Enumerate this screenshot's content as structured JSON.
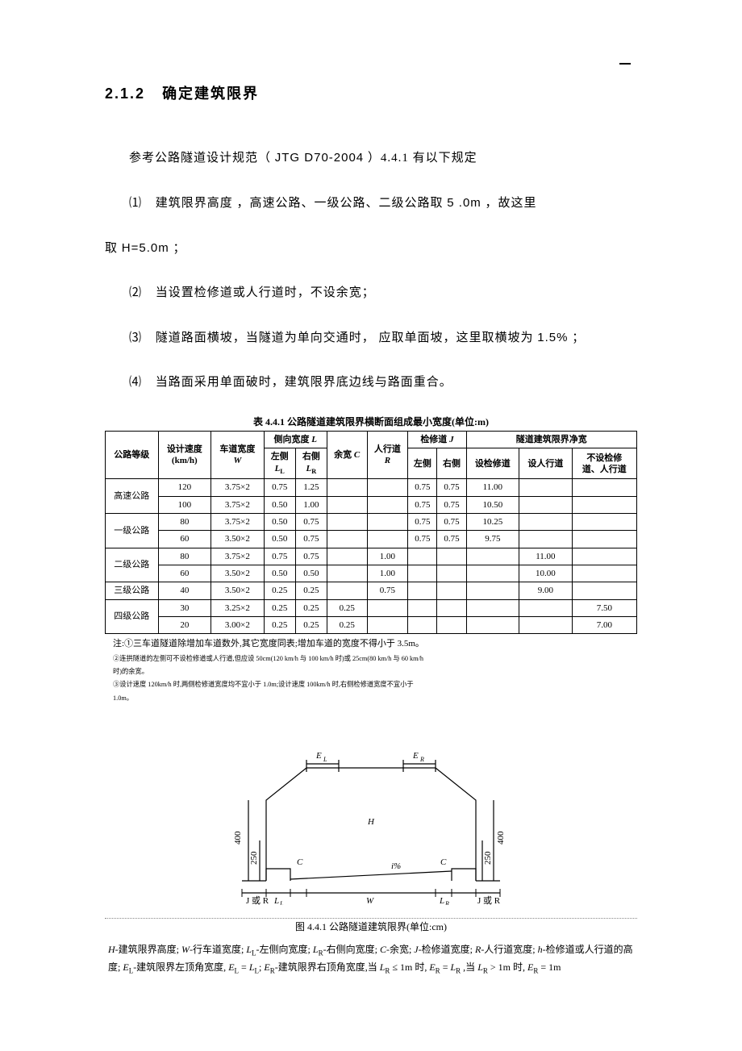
{
  "heading": {
    "number": "2.1.2",
    "title": "确定建筑限界"
  },
  "intro": {
    "prefix": "参考公路隧道设计规范（ ",
    "code": "JTG D70-2004",
    "suffix": " ）4.4.1 有以下规定"
  },
  "items": [
    {
      "marker": "⑴",
      "pre": "建筑限界高度 ，高速公路、一级公路、二级公路取 ",
      "val": "5 .0m",
      "post": " ，故这里"
    },
    {
      "cont": "取 H=5.0m ；"
    },
    {
      "marker": "⑵",
      "text": "当设置检修道或人行道时，不设余宽；"
    },
    {
      "marker": "⑶",
      "pre": "隧道路面横坡，当隧道为单向交通时， 应取单面坡，这里取横坡为 ",
      "val": "1.5%",
      "post": " ；"
    },
    {
      "marker": "⑷",
      "text": "当路面采用单面破时，建筑限界底边线与路面重合。"
    }
  ],
  "table": {
    "title": "表 4.4.1  公路隧道建筑限界横断面组成最小宽度(单位:m)",
    "headers": {
      "grade": "公路等级",
      "speed": "设计速度 (km/h)",
      "laneW": "车道宽度 W",
      "side": "侧向宽度 L",
      "sideL": "左侧 L_L",
      "sideR": "右侧 L_R",
      "clearC": "余宽 C",
      "pedR": "人行道 R",
      "maint": "检修道 J",
      "maintL": "左侧",
      "maintR": "右侧",
      "netW": "隧道建筑限界净宽",
      "net1": "设检修道设人行道",
      "net2": "不设检修道、人行道"
    },
    "rows": [
      {
        "grade": "高速公路",
        "speed": "120",
        "W": "3.75×2",
        "LL": "0.75",
        "LR": "1.25",
        "C": "",
        "R": "",
        "JL": "0.75",
        "JR": "0.75",
        "N1": "11.00",
        "N2": "",
        "N3": ""
      },
      {
        "grade": "",
        "speed": "100",
        "W": "3.75×2",
        "LL": "0.50",
        "LR": "1.00",
        "C": "",
        "R": "",
        "JL": "0.75",
        "JR": "0.75",
        "N1": "10.50",
        "N2": "",
        "N3": ""
      },
      {
        "grade": "一级公路",
        "speed": "80",
        "W": "3.75×2",
        "LL": "0.50",
        "LR": "0.75",
        "C": "",
        "R": "",
        "JL": "0.75",
        "JR": "0.75",
        "N1": "10.25",
        "N2": "",
        "N3": ""
      },
      {
        "grade": "",
        "speed": "60",
        "W": "3.50×2",
        "LL": "0.50",
        "LR": "0.75",
        "C": "",
        "R": "",
        "JL": "0.75",
        "JR": "0.75",
        "N1": "9.75",
        "N2": "",
        "N3": ""
      },
      {
        "grade": "",
        "speed": "80",
        "W": "3.75×2",
        "LL": "0.75",
        "LR": "0.75",
        "C": "",
        "R": "1.00",
        "JL": "",
        "JR": "",
        "N1": "",
        "N2": "11.00",
        "N3": ""
      },
      {
        "grade": "二级公路",
        "speed": "60",
        "W": "3.50×2",
        "LL": "0.50",
        "LR": "0.50",
        "C": "",
        "R": "1.00",
        "JL": "",
        "JR": "",
        "N1": "",
        "N2": "10.00",
        "N3": ""
      },
      {
        "grade": "三级公路",
        "speed": "40",
        "W": "3.50×2",
        "LL": "0.25",
        "LR": "0.25",
        "C": "",
        "R": "0.75",
        "JL": "",
        "JR": "",
        "N1": "",
        "N2": "9.00",
        "N3": ""
      },
      {
        "grade": "四级公路",
        "speed": "30",
        "W": "3.25×2",
        "LL": "0.25",
        "LR": "0.25",
        "C": "0.25",
        "R": "",
        "JL": "",
        "JR": "",
        "N1": "",
        "N2": "",
        "N3": "7.50"
      },
      {
        "grade": "",
        "speed": "20",
        "W": "3.00×2",
        "LL": "0.25",
        "LR": "0.25",
        "C": "0.25",
        "R": "",
        "JL": "",
        "JR": "",
        "N1": "",
        "N2": "",
        "N3": "7.00"
      }
    ],
    "notes": [
      "注:①三车道隧道除增加车道数外,其它宽度同表;增加车道的宽度不得小于 3.5m。",
      "②连拱隧道的左侧可不设检修道或人行道,但应设 50cm(120 km/h 与 100 km/h 时)或 25cm(80 km/h 与 60 km/h",
      "时)的余宽。",
      "③设计速度 120km/h 时,两侧检修道宽度均不宜小于 1.0m;设计速度 100km/h 时,右侧检修道宽度不宜小于",
      "1.0m。"
    ]
  },
  "diagram": {
    "caption": "图 4.4.1  公路隧道建筑限界(单位:cm)",
    "labels": {
      "EL": "E_L",
      "ER": "E_R",
      "H": "H",
      "C": "C",
      "W": "W",
      "LL": "L_L",
      "LR": "L_R",
      "JorR_l": "J 或 R",
      "JorR_r": "J 或 R",
      "h400": "400",
      "h250": "250",
      "ipc": "i%"
    },
    "legend": "H-建筑限界高度; W-行车道宽度; L_L-左侧向宽度; L_R-右侧向宽度; C-余宽; J-检修道宽度; R-人行道宽度; h-检修道或人行道的高度; E_L-建筑限界左顶角宽度, E_L = L_L; E_R-建筑限界右顶角宽度,当 L_R ≤ 1m 时, E_R = L_R ,当 L_R > 1m 时, E_R = 1m"
  }
}
